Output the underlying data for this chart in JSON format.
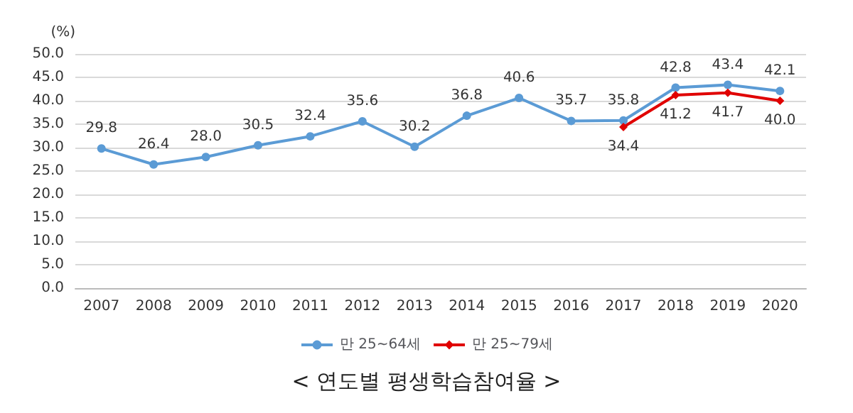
{
  "chart_data": {
    "type": "line",
    "title": "< 연도별 평생학습참여율 >",
    "ylabel": "(%)",
    "categories": [
      "2007",
      "2008",
      "2009",
      "2010",
      "2011",
      "2012",
      "2013",
      "2014",
      "2015",
      "2016",
      "2017",
      "2018",
      "2019",
      "2020"
    ],
    "series": [
      {
        "name": "만 25~64세",
        "color": "#5b9bd5",
        "marker": "circle",
        "values": [
          29.8,
          26.4,
          28.0,
          30.5,
          32.4,
          35.6,
          30.2,
          36.8,
          40.6,
          35.7,
          35.8,
          42.8,
          43.4,
          42.1
        ],
        "value_labels": [
          "29.8",
          "26.4",
          "28.0",
          "30.5",
          "32.4",
          "35.6",
          "30.2",
          "36.8",
          "40.6",
          "35.7",
          "35.8",
          "42.8",
          "43.4",
          "42.1"
        ]
      },
      {
        "name": "만 25~79세",
        "color": "#e00000",
        "marker": "diamond",
        "values": [
          null,
          null,
          null,
          null,
          null,
          null,
          null,
          null,
          null,
          null,
          34.4,
          41.2,
          41.7,
          40.0
        ],
        "value_labels": [
          null,
          null,
          null,
          null,
          null,
          null,
          null,
          null,
          null,
          null,
          "34.4",
          "41.2",
          "41.7",
          "40.0"
        ]
      }
    ],
    "ylim": [
      0,
      50
    ],
    "yticks": [
      {
        "value": 0,
        "label": "0.0"
      },
      {
        "value": 5,
        "label": "5.0"
      },
      {
        "value": 10,
        "label": "10.0"
      },
      {
        "value": 15,
        "label": "15.0"
      },
      {
        "value": 20,
        "label": "20.0"
      },
      {
        "value": 25,
        "label": "25.0"
      },
      {
        "value": 30,
        "label": "30.0"
      },
      {
        "value": 35,
        "label": "35.0"
      },
      {
        "value": 40,
        "label": "40.0"
      },
      {
        "value": 45,
        "label": "45.0"
      },
      {
        "value": 50,
        "label": "50.0"
      }
    ],
    "grid": "y",
    "legend": "bottom",
    "line_style": "solid"
  }
}
